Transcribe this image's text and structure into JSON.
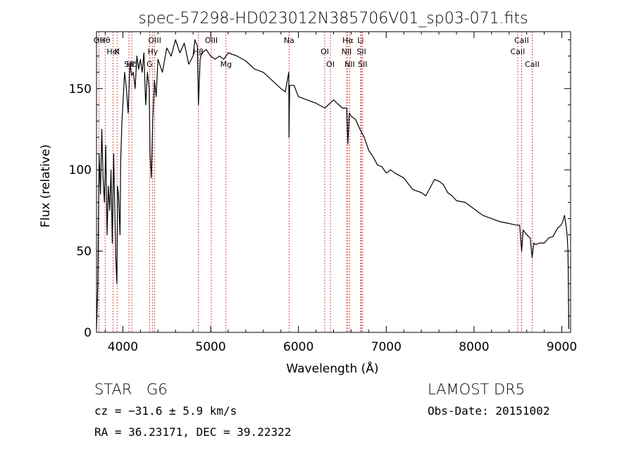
{
  "chart_data": {
    "type": "line",
    "title": "spec-57298-HD023012N385706V01_sp03-071.fits",
    "xlabel": "Wavelength (Å)",
    "ylabel": "Flux (relative)",
    "xlim": [
      3700,
      9100
    ],
    "ylim": [
      0,
      185
    ],
    "xticks": [
      4000,
      5000,
      6000,
      7000,
      8000,
      9000
    ],
    "yticks": [
      0,
      50,
      100,
      150
    ],
    "grid": false,
    "line_color": "#000000",
    "marker_color": "#cc2020",
    "x": [
      3700,
      3715,
      3730,
      3745,
      3760,
      3775,
      3790,
      3805,
      3820,
      3835,
      3850,
      3865,
      3880,
      3895,
      3910,
      3920,
      3933,
      3940,
      3950,
      3968,
      3975,
      3990,
      4000,
      4020,
      4040,
      4060,
      4080,
      4100,
      4120,
      4140,
      4160,
      4180,
      4200,
      4220,
      4240,
      4260,
      4280,
      4300,
      4310,
      4325,
      4340,
      4360,
      4380,
      4400,
      4450,
      4500,
      4550,
      4600,
      4650,
      4700,
      4750,
      4800,
      4820,
      4850,
      4861,
      4880,
      4900,
      4950,
      5000,
      5050,
      5100,
      5150,
      5200,
      5300,
      5400,
      5500,
      5600,
      5700,
      5800,
      5850,
      5890,
      5893,
      5900,
      5950,
      6000,
      6100,
      6200,
      6300,
      6400,
      6500,
      6550,
      6563,
      6580,
      6600,
      6650,
      6700,
      6750,
      6800,
      6850,
      6900,
      6950,
      7000,
      7050,
      7100,
      7200,
      7300,
      7400,
      7450,
      7500,
      7550,
      7600,
      7650,
      7700,
      7750,
      7800,
      7900,
      8000,
      8100,
      8200,
      8300,
      8400,
      8480,
      8500,
      8520,
      8542,
      8560,
      8600,
      8640,
      8662,
      8680,
      8700,
      8750,
      8800,
      8850,
      8900,
      8950,
      8990,
      9010,
      9030,
      9050,
      9060,
      9070,
      9080
    ],
    "y": [
      2,
      30,
      110,
      85,
      125,
      95,
      80,
      115,
      60,
      90,
      75,
      100,
      55,
      110,
      70,
      45,
      30,
      90,
      85,
      60,
      105,
      130,
      140,
      160,
      150,
      135,
      165,
      158,
      160,
      150,
      170,
      162,
      168,
      160,
      172,
      140,
      160,
      150,
      110,
      95,
      130,
      155,
      145,
      168,
      160,
      175,
      170,
      180,
      172,
      178,
      165,
      170,
      180,
      176,
      140,
      168,
      172,
      174,
      170,
      168,
      170,
      168,
      172,
      170,
      167,
      162,
      160,
      155,
      150,
      148,
      160,
      120,
      152,
      152,
      145,
      143,
      141,
      138,
      143,
      138,
      138,
      116,
      135,
      133,
      131,
      125,
      120,
      112,
      108,
      103,
      102,
      98,
      100,
      98,
      95,
      88,
      86,
      84,
      89,
      94,
      93,
      91,
      86,
      84,
      81,
      80,
      76,
      72,
      70,
      68,
      67,
      66,
      66,
      66,
      50,
      63,
      60,
      58,
      46,
      55,
      54,
      55,
      55,
      58,
      59,
      64,
      66,
      68,
      72,
      65,
      60,
      50,
      2
    ],
    "lines": [
      {
        "label": "Hθ",
        "x": 3798
      },
      {
        "label": "K",
        "x": 3934
      },
      {
        "label": "Hδ",
        "x": 4102
      },
      {
        "label": "OII",
        "x": 3727
      },
      {
        "label": "HeI",
        "x": 3889
      },
      {
        "label": "SII",
        "x": 4069
      },
      {
        "label": "OIII",
        "x": 4363
      },
      {
        "label": "Hγ",
        "x": 4340
      },
      {
        "label": "G",
        "x": 4305
      },
      {
        "label": "OIII",
        "x": 5007
      },
      {
        "label": "Hβ",
        "x": 4861
      },
      {
        "label": "Mg",
        "x": 5175
      },
      {
        "label": "Na",
        "x": 5893
      },
      {
        "label": "OI",
        "x": 6300
      },
      {
        "label": "OI",
        "x": 6364
      },
      {
        "label": "Hα",
        "x": 6563
      },
      {
        "label": "SII",
        "x": 6717
      },
      {
        "label": "NII",
        "x": 6584
      },
      {
        "label": "Li",
        "x": 6708
      },
      {
        "label": "NII",
        "x": 6548
      },
      {
        "label": "SII",
        "x": 6731
      },
      {
        "label": "CaII",
        "x": 8542
      },
      {
        "label": "CaII",
        "x": 8498
      },
      {
        "label": "CaII",
        "x": 8662
      }
    ]
  },
  "info": {
    "object": "STAR",
    "subclass": "G6",
    "redshift": "cz = −31.6 ± 5.9 km/s",
    "coords": "RA =  36.23171, DEC =  39.22322",
    "survey": "LAMOST DR5",
    "obs_date": "Obs-Date: 20151002"
  }
}
